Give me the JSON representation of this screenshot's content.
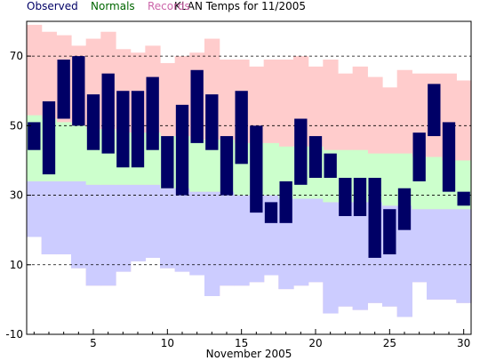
{
  "chart_data": {
    "type": "bar",
    "title": "KLAN Temps for 11/2005",
    "xlabel": "November 2005",
    "ylabel": "",
    "ylim": [
      -10,
      80
    ],
    "xlim": [
      0.5,
      30.5
    ],
    "y_ticks": [
      -10,
      10,
      30,
      50,
      70
    ],
    "x_ticks": [
      5,
      10,
      15,
      20,
      25,
      30
    ],
    "grid": {
      "horizontal_dashed_at": [
        10,
        30,
        50,
        70
      ]
    },
    "legend": {
      "placement": "top-left",
      "entries": [
        "Observed",
        "Normals",
        "Records"
      ]
    },
    "days": [
      1,
      2,
      3,
      4,
      5,
      6,
      7,
      8,
      9,
      10,
      11,
      12,
      13,
      14,
      15,
      16,
      17,
      18,
      19,
      20,
      21,
      22,
      23,
      24,
      25,
      26,
      27,
      28,
      29,
      30
    ],
    "series": [
      {
        "name": "Records",
        "color": "#ffcccc",
        "high": [
          79,
          77,
          76,
          73,
          75,
          77,
          72,
          71,
          73,
          68,
          70,
          71,
          75,
          69,
          69,
          67,
          69,
          69,
          70,
          67,
          69,
          65,
          67,
          64,
          61,
          66,
          65,
          65,
          65,
          63
        ],
        "low": [
          18,
          13,
          13,
          9,
          4,
          4,
          8,
          11,
          12,
          9,
          8,
          7,
          1,
          4,
          4,
          5,
          7,
          3,
          4,
          5,
          -4,
          -2,
          -3,
          -1,
          -2,
          -5,
          5,
          0,
          0,
          -1
        ]
      },
      {
        "name": "Normals",
        "color": "#ccffcc",
        "high": [
          53,
          52,
          51,
          50,
          49,
          49,
          48,
          48,
          48,
          47,
          47,
          46,
          46,
          46,
          45,
          45,
          45,
          44,
          44,
          44,
          43,
          43,
          43,
          42,
          42,
          42,
          41,
          41,
          40,
          40
        ],
        "low": [
          34,
          34,
          34,
          34,
          33,
          33,
          33,
          33,
          33,
          32,
          32,
          31,
          31,
          31,
          30,
          30,
          30,
          29,
          29,
          29,
          28,
          28,
          28,
          28,
          27,
          27,
          26,
          26,
          26,
          26
        ]
      },
      {
        "name": "Observed",
        "color": "#000066",
        "high": [
          51,
          57,
          69,
          70,
          59,
          65,
          60,
          60,
          64,
          47,
          56,
          66,
          59,
          47,
          60,
          50,
          28,
          34,
          52,
          47,
          42,
          35,
          35,
          35,
          26,
          32,
          48,
          62,
          51,
          31
        ],
        "low": [
          43,
          36,
          52,
          50,
          43,
          42,
          38,
          38,
          43,
          32,
          30,
          45,
          43,
          30,
          39,
          25,
          22,
          22,
          33,
          35,
          35,
          24,
          24,
          12,
          13,
          20,
          34,
          47,
          31,
          27
        ]
      }
    ],
    "colors": {
      "observed": "#000066",
      "normals_text": "#006600",
      "records_text": "#cc66aa",
      "normals_fill": "#ccffcc",
      "records_fill": "#ffcccc",
      "lowband_fill": "#ccccff"
    }
  }
}
